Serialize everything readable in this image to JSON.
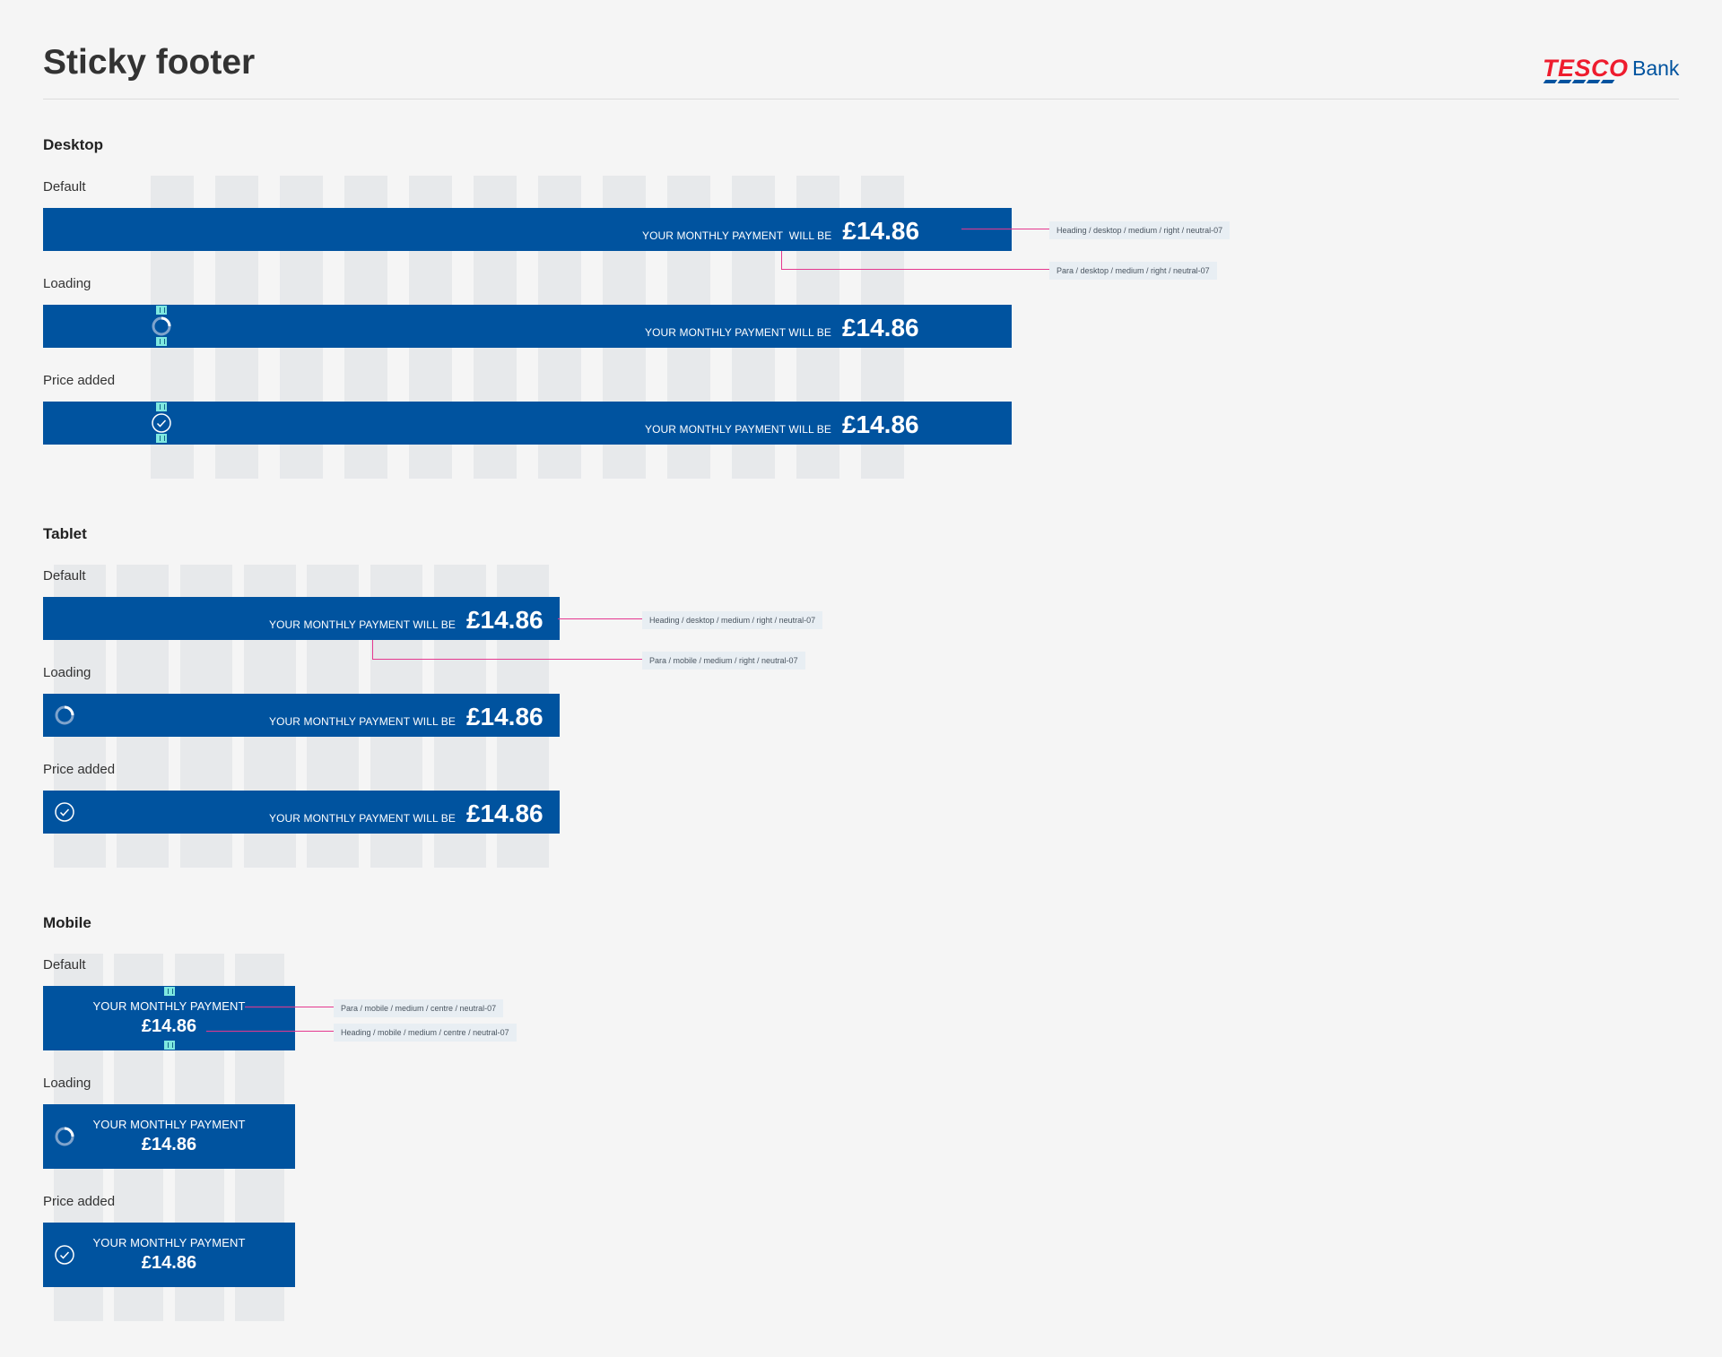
{
  "page": {
    "title": "Sticky footer",
    "brand_word": "TESCO",
    "brand_bank": "Bank"
  },
  "colors": {
    "bar": "#00539f",
    "grid": "#e7e9eb",
    "annotation_line": "#e5388f",
    "spacer": "#7ee8e0",
    "brand_red": "#ee1c2e"
  },
  "sections": {
    "desktop": {
      "heading": "Desktop",
      "states": {
        "default": {
          "label": "Default",
          "message": "YOUR MONTHLY PAYMENT  WILL BE",
          "price": "£14.86"
        },
        "loading": {
          "label": "Loading",
          "message": "YOUR MONTHLY PAYMENT WILL BE",
          "price": "£14.86",
          "icon": "spinner-icon"
        },
        "added": {
          "label": "Price added",
          "message": "YOUR MONTHLY PAYMENT WILL BE",
          "price": "£14.86",
          "icon": "check-circle-icon"
        }
      },
      "annotations": {
        "heading": "Heading / desktop / medium / right / neutral-07",
        "para": "Para / desktop / medium / right / neutral-07"
      }
    },
    "tablet": {
      "heading": "Tablet",
      "states": {
        "default": {
          "label": "Default",
          "message": "YOUR MONTHLY PAYMENT WILL BE",
          "price": "£14.86"
        },
        "loading": {
          "label": "Loading",
          "message": "YOUR MONTHLY PAYMENT WILL BE",
          "price": "£14.86",
          "icon": "spinner-icon"
        },
        "added": {
          "label": "Price added",
          "message": "YOUR MONTHLY PAYMENT WILL BE",
          "price": "£14.86",
          "icon": "check-circle-icon"
        }
      },
      "annotations": {
        "heading": "Heading / desktop / medium / right / neutral-07",
        "para": "Para / mobile / medium / right / neutral-07"
      }
    },
    "mobile": {
      "heading": "Mobile",
      "states": {
        "default": {
          "label": "Default",
          "message": "YOUR MONTHLY PAYMENT",
          "price": "£14.86"
        },
        "loading": {
          "label": "Loading",
          "message": "YOUR MONTHLY PAYMENT",
          "price": "£14.86",
          "icon": "spinner-icon"
        },
        "added": {
          "label": "Price added",
          "message": "YOUR MONTHLY PAYMENT",
          "price": "£14.86",
          "icon": "check-circle-icon"
        }
      },
      "annotations": {
        "para": "Para / mobile / medium / centre / neutral-07",
        "heading": "Heading / mobile / medium / centre / neutral-07"
      }
    }
  }
}
